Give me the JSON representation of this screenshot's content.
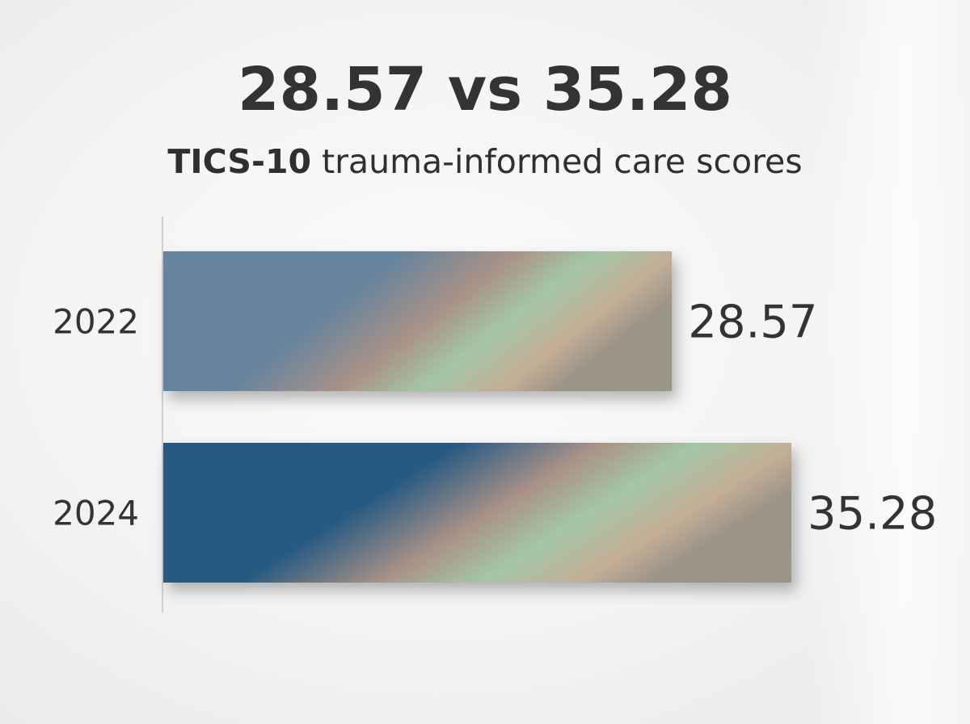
{
  "headline": "28.57 vs 35.28",
  "subtitle": {
    "bold": "TICS-10",
    "rest": " trauma-informed care scores"
  },
  "colors": {
    "bar_2022_base": "#66849d",
    "bar_2024_base": "#285a82",
    "gradient_rose": "#a99287",
    "gradient_green": "#a4c6a6",
    "gradient_tan": "#c4ae96",
    "gradient_end": "#9b9488",
    "axis": "#cfcfcf",
    "text": "#333333"
  },
  "chart_data": {
    "type": "bar",
    "orientation": "horizontal",
    "categories": [
      "2022",
      "2024"
    ],
    "values": [
      28.57,
      35.28
    ],
    "value_labels": [
      "28.57",
      "35.28"
    ],
    "title": "28.57 vs 35.28",
    "subtitle": "TICS-10 trauma-informed care scores",
    "xlim": [
      0,
      35.28
    ],
    "grid": false,
    "legend": "none"
  }
}
